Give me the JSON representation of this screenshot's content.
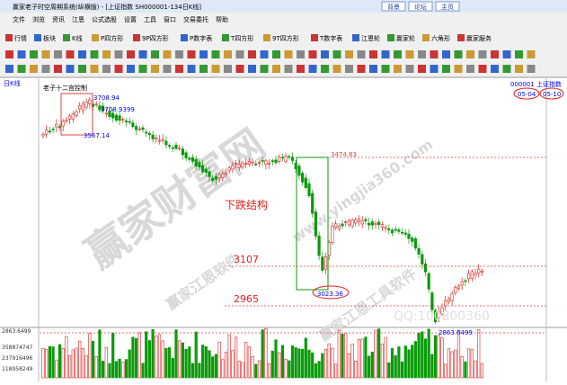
{
  "window": {
    "title": "赢家老子时空周期系统(纵横版) - [上证指数 SH000001-134日K线]",
    "buttons": [
      "背景",
      "论坛",
      "主页"
    ]
  },
  "menu": [
    "文件",
    "浏览",
    "资讯",
    "江恩",
    "公式选股",
    "设置",
    "工具",
    "窗口",
    "交易委托",
    "帮助"
  ],
  "toolbar": [
    "行情",
    "板块",
    "K线",
    "P四方形",
    "9P四方形",
    "P数字表",
    "T四方形",
    "9T四方形",
    "T数字表",
    "江恩轮",
    "赢家轮",
    "六角形",
    "赢家服务"
  ],
  "chart": {
    "panel_label": "日K线",
    "stock": "000001 上证指数",
    "dates": [
      "05-04",
      "05-10"
    ],
    "labels": [
      "老子十二宫控制",
      "3708.94",
      "3708.9399",
      "3567.14",
      "3474.83",
      "下跌结构",
      "3107",
      "2965",
      "3023.36",
      "2863.6499",
      "QQ:100800360"
    ],
    "axis_labels": [
      "2863.6499",
      "358874747",
      "237916496",
      "118958249"
    ],
    "watermarks": [
      "赢家财富网",
      "赢家江恩软件",
      "www.yingjia360.com",
      "赢家江恩工具软件"
    ]
  }
}
